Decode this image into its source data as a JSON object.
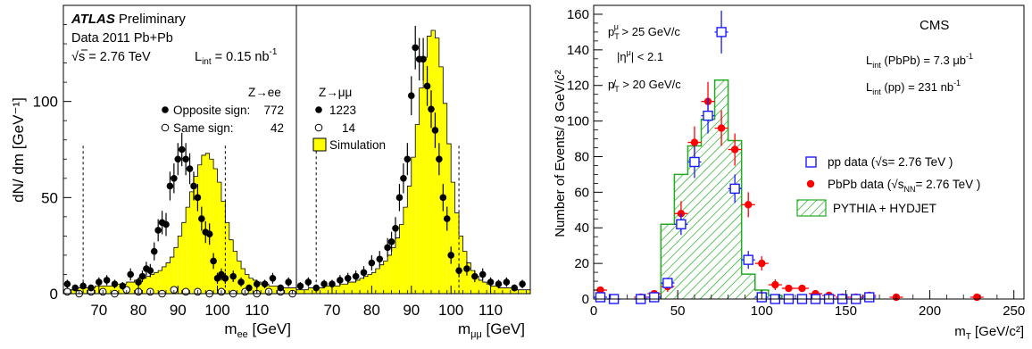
{
  "chart_data": [
    {
      "type": "bar",
      "panel": "Z to ee",
      "title": "ATLAS Preliminary",
      "labels": {
        "atlas_bold": "ATLAS",
        "atlas_rest": "Preliminary",
        "data_year": "Data 2011  Pb+Pb",
        "sqrt": "√",
        "s_text": "s = 2.76 TeV",
        "lumi_prefix": "L",
        "lumi_sub": "int",
        "lumi_value": " = 0.15 nb",
        "lumi_sup": "-1",
        "channel": "Z→ee",
        "legend_opposite": "Opposite sign:",
        "legend_opposite_count": "772",
        "legend_same": "Same sign:",
        "legend_same_count": "42"
      },
      "ylabel": "dN/ dm [GeV⁻¹]",
      "xlabel": "m_ee [GeV]",
      "xlabel_main": "m",
      "xlabel_sub": "ee",
      "xlabel_unit": " [GeV]",
      "xlim": [
        61,
        120
      ],
      "ylim": [
        0,
        150
      ],
      "xticks": [
        70,
        80,
        90,
        100,
        110
      ],
      "yticks": [
        0,
        50,
        100
      ],
      "selection_cuts": [
        66,
        102
      ],
      "simulation_bins": {
        "start": 61,
        "width": 1,
        "values": [
          2,
          2,
          2,
          3,
          3,
          3,
          3,
          3,
          4,
          4,
          4,
          4,
          4,
          5,
          5,
          5,
          6,
          6,
          7,
          8,
          8,
          9,
          10,
          11,
          12,
          14,
          16,
          19,
          24,
          30,
          37,
          45,
          53,
          61,
          67,
          72,
          73,
          70,
          65,
          58,
          48,
          37,
          28,
          22,
          17,
          13,
          10,
          8,
          7,
          6,
          5,
          5,
          4,
          4,
          4,
          3,
          3,
          3,
          3
        ]
      },
      "opposite_sign_points": {
        "x": [
          62,
          64,
          66,
          68,
          70,
          72,
          74,
          76,
          78,
          80,
          81,
          82,
          83,
          84,
          85,
          86,
          87,
          88,
          89,
          90,
          91,
          92,
          93,
          94,
          95,
          96,
          97,
          98,
          99,
          100,
          101,
          102,
          104,
          106,
          108,
          110,
          112,
          114,
          116,
          118
        ],
        "y": [
          5,
          3,
          4,
          3,
          6,
          7,
          5,
          4,
          10,
          6,
          9,
          13,
          12,
          22,
          33,
          37,
          36,
          56,
          60,
          70,
          75,
          70,
          65,
          56,
          50,
          39,
          32,
          31,
          17,
          8,
          10,
          8,
          9,
          6,
          3,
          5,
          5,
          8,
          3,
          6
        ]
      },
      "same_sign_points": {
        "x": [
          62,
          65,
          68,
          71,
          74,
          77,
          80,
          83,
          86,
          89,
          92,
          95,
          98,
          101,
          104,
          107,
          110,
          113,
          116,
          119
        ],
        "y": [
          1,
          0,
          1,
          1,
          0,
          2,
          1,
          1,
          0,
          2,
          1,
          1,
          0,
          1,
          0,
          1,
          0,
          1,
          1,
          0
        ]
      }
    },
    {
      "type": "bar",
      "panel": "Z to mumu",
      "labels": {
        "channel": "Z→μμ",
        "legend_count_filled": "1223",
        "legend_count_open": "14",
        "legend_sim": "Simulation"
      },
      "xlabel": "m_μμ [GeV]",
      "xlabel_main": "m",
      "xlabel_sub": "μμ",
      "xlabel_unit": " [GeV]",
      "xlim": [
        61,
        120
      ],
      "ylim": [
        0,
        150
      ],
      "xticks": [
        70,
        80,
        90,
        100,
        110
      ],
      "selection_cuts": [
        66,
        102
      ],
      "simulation_bins": {
        "start": 61,
        "width": 1,
        "values": [
          2,
          2,
          2,
          3,
          3,
          3,
          3,
          4,
          4,
          4,
          4,
          5,
          5,
          6,
          6,
          7,
          8,
          9,
          10,
          11,
          13,
          15,
          17,
          20,
          24,
          29,
          36,
          45,
          56,
          71,
          88,
          107,
          123,
          134,
          137,
          133,
          118,
          99,
          78,
          58,
          42,
          30,
          22,
          16,
          12,
          9,
          7,
          6,
          5,
          4,
          4,
          3,
          3,
          3,
          3,
          2,
          2,
          2,
          2
        ]
      },
      "filled_points": {
        "x": [
          62,
          64,
          66,
          68,
          70,
          72,
          74,
          76,
          78,
          80,
          82,
          84,
          85,
          86,
          87,
          88,
          89,
          90,
          91,
          92,
          93,
          94,
          95,
          96,
          97,
          98,
          99,
          100,
          102,
          104,
          106,
          108,
          110,
          112,
          114,
          116,
          118
        ],
        "y": [
          4,
          6,
          3,
          5,
          5,
          7,
          8,
          9,
          11,
          16,
          18,
          24,
          27,
          34,
          50,
          60,
          70,
          103,
          128,
          122,
          122,
          108,
          96,
          85,
          70,
          50,
          39,
          20,
          12,
          13,
          9,
          10,
          6,
          5,
          6,
          3,
          5
        ]
      },
      "open_points": {
        "x": [],
        "y": []
      }
    },
    {
      "type": "bar",
      "panel": "CMS",
      "labels": {
        "cms": "CMS",
        "pt_cut_main": "p",
        "pt_cut_sub": "T",
        "pt_cut_sup": "μ",
        "pt_cut_rest": " > 25 GeV/c",
        "eta_cut": "|η",
        "eta_cut_sup": "μ",
        "eta_cut_rest": "| < 2.1",
        "met_cut_main": "p̸",
        "met_cut_sub": "T",
        "met_cut_rest": " > 20 GeV/c",
        "lumi_pbpb_L": "L",
        "lumi_pbpb_sub": "int",
        "lumi_pbpb_rest": " (PbPb) = 7.3 μb",
        "lumi_pbpb_sup": "-1",
        "lumi_pp_L": "L",
        "lumi_pp_sub": "int",
        "lumi_pp_rest": " (pp) = 231 nb",
        "lumi_pp_sup": "-1",
        "legend_pp": "pp data (√s= 2.76 TeV )",
        "legend_pbpb_pre": "PbPb data (√",
        "legend_pbpb_s": "s",
        "legend_pbpb_nn": "NN",
        "legend_pbpb_post": "= 2.76 TeV )",
        "legend_mc": "PYTHIA + HYDJET"
      },
      "ylabel": "Number of Events/ 8 GeV/c²",
      "xlabel": "m_T [GeV/c²]",
      "xlabel_main": "m",
      "xlabel_sub": "T",
      "xlabel_unit": " [GeV/c²]",
      "xlim": [
        0,
        256
      ],
      "ylim": [
        0,
        165
      ],
      "xticks": [
        0,
        50,
        100,
        150,
        200,
        250
      ],
      "yticks": [
        0,
        20,
        40,
        60,
        80,
        100,
        120,
        140,
        160
      ],
      "mc_bins": {
        "edges": [
          40,
          48,
          56,
          64,
          72,
          80,
          88,
          96,
          104,
          112
        ],
        "values": [
          42,
          70,
          86,
          101,
          123,
          89,
          14,
          5,
          2
        ]
      },
      "pp_data": {
        "x": [
          4,
          12,
          28,
          36,
          44,
          52,
          60,
          68,
          76,
          84,
          92,
          100,
          108,
          116,
          124,
          132,
          140,
          148,
          156,
          164
        ],
        "y": [
          1,
          0,
          0,
          1,
          9,
          42,
          77,
          103,
          150,
          62,
          22,
          1,
          0,
          0,
          0,
          0,
          0,
          0,
          0,
          1
        ],
        "err": [
          1,
          1,
          1,
          1,
          3,
          6,
          9,
          10,
          12,
          8,
          5,
          1,
          1,
          1,
          1,
          1,
          1,
          1,
          1,
          1
        ]
      },
      "pbpb_data": {
        "x": [
          4,
          28,
          36,
          44,
          52,
          60,
          68,
          76,
          84,
          92,
          100,
          108,
          116,
          124,
          132,
          140,
          148,
          156,
          164,
          180,
          228
        ],
        "y": [
          5,
          1,
          3,
          7,
          48,
          88,
          111,
          96,
          84,
          53,
          20,
          8,
          6,
          6,
          3,
          2,
          1,
          1,
          2,
          1,
          1
        ],
        "err": [
          2,
          1,
          2,
          3,
          7,
          9,
          11,
          10,
          9,
          7,
          4,
          3,
          2,
          2,
          2,
          1,
          1,
          1,
          1,
          1,
          1
        ]
      }
    }
  ],
  "colors": {
    "simulation_fill": "#ffff00",
    "mc_hatch": "#22aa22",
    "pp_marker": "#1a1aff",
    "pbpb_marker": "#ff0000"
  }
}
